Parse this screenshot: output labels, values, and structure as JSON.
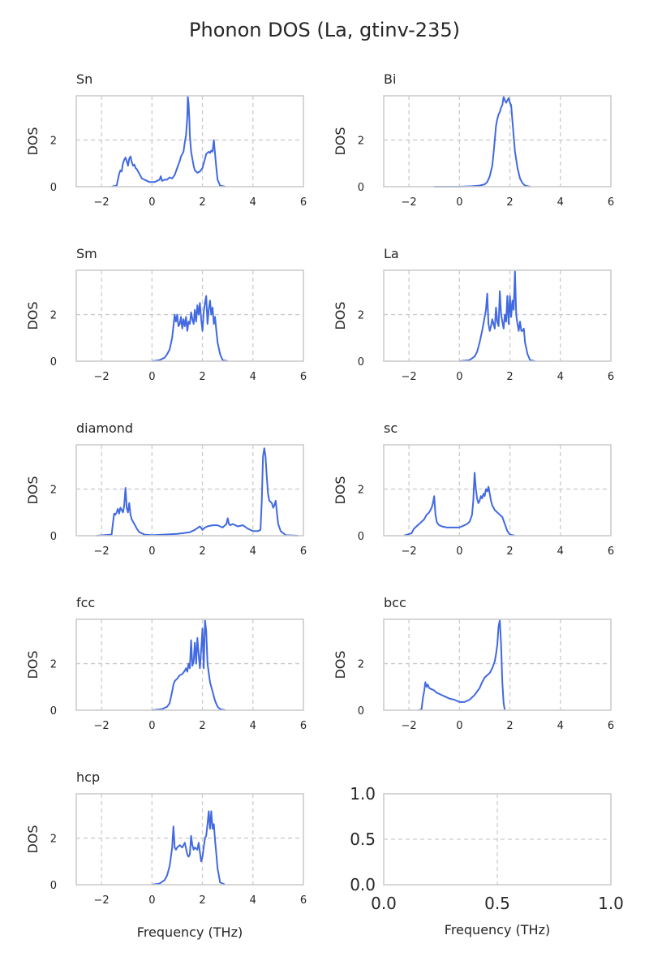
{
  "figure": {
    "title": "Phonon DOS (La, gtinv-235)",
    "colors": {
      "line": "#4169e1",
      "grid": "#cccccc",
      "spine": "#cccccc",
      "text": "#262626",
      "background": "#ffffff"
    }
  },
  "chart_data": [
    {
      "type": "line",
      "title": "Sn",
      "xlabel": "",
      "ylabel": "DOS",
      "xlim": [
        -3,
        6
      ],
      "ylim": [
        0,
        3.9
      ],
      "grid": true,
      "xticks": [
        "−2",
        "0",
        "2",
        "4",
        "6"
      ],
      "yticks": [
        "0",
        "2"
      ],
      "x": [
        -1.6,
        -1.4,
        -1.3,
        -1.25,
        -1.2,
        -1.15,
        -1.1,
        -1.05,
        -1.0,
        -0.95,
        -0.9,
        -0.85,
        -0.8,
        -0.75,
        -0.7,
        -0.65,
        -0.6,
        -0.5,
        -0.4,
        -0.3,
        -0.2,
        -0.1,
        0.0,
        0.1,
        0.2,
        0.3,
        0.35,
        0.4,
        0.5,
        0.6,
        0.7,
        0.8,
        0.9,
        1.0,
        1.1,
        1.15,
        1.2,
        1.25,
        1.3,
        1.35,
        1.4,
        1.42,
        1.45,
        1.48,
        1.5,
        1.55,
        1.6,
        1.65,
        1.7,
        1.8,
        1.9,
        2.0,
        2.1,
        2.15,
        2.2,
        2.25,
        2.3,
        2.35,
        2.4,
        2.45,
        2.5,
        2.55,
        2.6,
        2.7,
        2.9
      ],
      "y": [
        0.0,
        0.05,
        0.55,
        0.7,
        0.65,
        1.0,
        1.15,
        1.25,
        1.1,
        0.9,
        1.2,
        1.3,
        1.05,
        0.9,
        0.95,
        0.8,
        0.75,
        0.55,
        0.35,
        0.3,
        0.25,
        0.2,
        0.2,
        0.2,
        0.25,
        0.3,
        0.45,
        0.25,
        0.3,
        0.3,
        0.4,
        0.35,
        0.5,
        0.8,
        1.1,
        1.3,
        1.4,
        1.5,
        1.9,
        2.2,
        3.0,
        3.85,
        3.6,
        2.9,
        2.2,
        1.5,
        1.2,
        0.9,
        0.7,
        0.6,
        0.65,
        0.8,
        1.2,
        1.4,
        1.45,
        1.5,
        1.45,
        1.55,
        1.5,
        2.0,
        1.4,
        0.8,
        0.3,
        0.05,
        0.0
      ]
    },
    {
      "type": "line",
      "title": "Bi",
      "xlabel": "",
      "ylabel": "DOS",
      "xlim": [
        -3,
        6
      ],
      "ylim": [
        0,
        3.9
      ],
      "grid": true,
      "xticks": [
        "−2",
        "0",
        "2",
        "4",
        "6"
      ],
      "yticks": [
        "0",
        "2"
      ],
      "x": [
        -1.0,
        0.0,
        0.5,
        0.8,
        1.0,
        1.1,
        1.2,
        1.3,
        1.35,
        1.4,
        1.45,
        1.5,
        1.55,
        1.6,
        1.65,
        1.7,
        1.75,
        1.8,
        1.85,
        1.9,
        1.95,
        2.0,
        2.05,
        2.1,
        2.2,
        2.3,
        2.4,
        2.5,
        2.6,
        2.8
      ],
      "y": [
        0.0,
        0.0,
        0.02,
        0.05,
        0.1,
        0.2,
        0.45,
        0.9,
        1.4,
        2.0,
        2.6,
        2.9,
        3.1,
        3.2,
        3.4,
        3.5,
        3.85,
        3.7,
        3.6,
        3.7,
        3.8,
        3.6,
        3.5,
        2.8,
        1.5,
        0.8,
        0.35,
        0.15,
        0.05,
        0.0
      ]
    },
    {
      "type": "line",
      "title": "Sm",
      "xlabel": "",
      "ylabel": "DOS",
      "xlim": [
        -3,
        6
      ],
      "ylim": [
        0,
        3.9
      ],
      "grid": true,
      "xticks": [
        "−2",
        "0",
        "2",
        "4",
        "6"
      ],
      "yticks": [
        "0",
        "2"
      ],
      "x": [
        0.0,
        0.3,
        0.5,
        0.6,
        0.7,
        0.8,
        0.85,
        0.9,
        0.95,
        1.0,
        1.05,
        1.1,
        1.15,
        1.2,
        1.25,
        1.3,
        1.35,
        1.4,
        1.45,
        1.5,
        1.55,
        1.6,
        1.65,
        1.7,
        1.75,
        1.8,
        1.85,
        1.9,
        1.95,
        2.0,
        2.05,
        2.1,
        2.15,
        2.2,
        2.25,
        2.3,
        2.35,
        2.4,
        2.45,
        2.5,
        2.55,
        2.6,
        2.7,
        2.8,
        3.0
      ],
      "y": [
        0.0,
        0.05,
        0.15,
        0.3,
        0.5,
        1.0,
        1.5,
        2.0,
        1.7,
        2.0,
        1.5,
        1.6,
        1.9,
        1.4,
        1.8,
        1.5,
        1.9,
        1.3,
        1.7,
        1.6,
        2.1,
        1.8,
        1.6,
        2.2,
        1.7,
        2.4,
        2.0,
        2.5,
        1.8,
        1.3,
        2.1,
        2.5,
        2.8,
        1.6,
        2.2,
        2.6,
        2.0,
        2.3,
        1.6,
        1.9,
        1.3,
        0.8,
        0.3,
        0.05,
        0.0
      ]
    },
    {
      "type": "line",
      "title": "La",
      "xlabel": "",
      "ylabel": "DOS",
      "xlim": [
        -3,
        6
      ],
      "ylim": [
        0,
        3.9
      ],
      "grid": true,
      "xticks": [
        "−2",
        "0",
        "2",
        "4",
        "6"
      ],
      "yticks": [
        "0",
        "2"
      ],
      "x": [
        0.0,
        0.4,
        0.6,
        0.7,
        0.8,
        0.9,
        0.95,
        1.0,
        1.05,
        1.1,
        1.15,
        1.2,
        1.25,
        1.3,
        1.35,
        1.4,
        1.45,
        1.5,
        1.55,
        1.6,
        1.65,
        1.7,
        1.75,
        1.8,
        1.85,
        1.9,
        1.95,
        2.0,
        2.05,
        2.1,
        2.15,
        2.2,
        2.25,
        2.3,
        2.35,
        2.4,
        2.45,
        2.5,
        2.55,
        2.6,
        2.7,
        2.8,
        3.0
      ],
      "y": [
        0.0,
        0.05,
        0.2,
        0.4,
        0.8,
        1.3,
        1.6,
        1.9,
        2.2,
        2.9,
        1.6,
        1.3,
        1.5,
        1.8,
        1.6,
        1.4,
        2.3,
        1.7,
        1.5,
        3.0,
        2.0,
        1.7,
        1.4,
        2.0,
        1.7,
        2.8,
        1.6,
        2.8,
        1.9,
        2.6,
        2.2,
        3.85,
        2.0,
        1.6,
        1.3,
        1.7,
        1.3,
        1.3,
        1.4,
        0.8,
        0.3,
        0.05,
        0.0
      ]
    },
    {
      "type": "line",
      "title": "diamond",
      "xlabel": "",
      "ylabel": "DOS",
      "xlim": [
        -3,
        6
      ],
      "ylim": [
        0,
        3.9
      ],
      "grid": true,
      "xticks": [
        "−2",
        "0",
        "2",
        "4",
        "6"
      ],
      "yticks": [
        "0",
        "2"
      ],
      "x": [
        -2.2,
        -1.6,
        -1.55,
        -1.5,
        -1.45,
        -1.4,
        -1.35,
        -1.3,
        -1.25,
        -1.2,
        -1.15,
        -1.1,
        -1.05,
        -1.0,
        -0.95,
        -0.9,
        -0.85,
        -0.8,
        -0.7,
        -0.6,
        -0.5,
        -0.3,
        0.0,
        0.5,
        1.0,
        1.5,
        1.7,
        1.9,
        2.0,
        2.1,
        2.2,
        2.4,
        2.6,
        2.8,
        2.95,
        3.0,
        3.05,
        3.1,
        3.2,
        3.3,
        3.4,
        3.6,
        3.8,
        4.0,
        4.2,
        4.3,
        4.35,
        4.4,
        4.45,
        4.5,
        4.55,
        4.6,
        4.65,
        4.7,
        4.75,
        4.8,
        4.85,
        4.9,
        5.0,
        5.1,
        5.3,
        5.8
      ],
      "y": [
        0.0,
        0.05,
        0.5,
        0.95,
        0.9,
        1.0,
        1.15,
        0.95,
        1.2,
        1.1,
        1.0,
        1.3,
        2.05,
        1.2,
        1.0,
        1.4,
        0.9,
        0.7,
        0.5,
        0.3,
        0.15,
        0.05,
        0.02,
        0.05,
        0.08,
        0.15,
        0.25,
        0.4,
        0.25,
        0.35,
        0.4,
        0.45,
        0.45,
        0.35,
        0.5,
        0.75,
        0.5,
        0.45,
        0.5,
        0.45,
        0.4,
        0.45,
        0.3,
        0.2,
        0.2,
        0.25,
        1.5,
        3.4,
        3.75,
        3.4,
        2.5,
        1.8,
        1.5,
        1.45,
        1.4,
        1.2,
        1.3,
        1.5,
        0.5,
        0.2,
        0.02,
        0.0
      ]
    },
    {
      "type": "line",
      "title": "sc",
      "xlabel": "",
      "ylabel": "DOS",
      "xlim": [
        -3,
        6
      ],
      "ylim": [
        0,
        3.9
      ],
      "grid": true,
      "xticks": [
        "−2",
        "0",
        "2",
        "4",
        "6"
      ],
      "yticks": [
        "0",
        "2"
      ],
      "x": [
        -2.2,
        -1.9,
        -1.8,
        -1.7,
        -1.6,
        -1.5,
        -1.4,
        -1.3,
        -1.2,
        -1.1,
        -1.05,
        -1.0,
        -0.95,
        -0.9,
        -0.85,
        -0.8,
        -0.7,
        -0.5,
        -0.3,
        -0.1,
        0.0,
        0.1,
        0.2,
        0.3,
        0.4,
        0.5,
        0.55,
        0.6,
        0.65,
        0.7,
        0.75,
        0.8,
        0.85,
        0.9,
        0.95,
        1.0,
        1.05,
        1.1,
        1.15,
        1.2,
        1.25,
        1.3,
        1.35,
        1.4,
        1.5,
        1.6,
        1.7,
        1.8,
        1.9,
        2.0,
        2.2
      ],
      "y": [
        0.0,
        0.1,
        0.3,
        0.4,
        0.5,
        0.6,
        0.7,
        0.9,
        1.0,
        1.2,
        1.4,
        1.7,
        0.9,
        0.6,
        0.5,
        0.45,
        0.4,
        0.35,
        0.35,
        0.35,
        0.35,
        0.4,
        0.45,
        0.5,
        0.6,
        0.9,
        1.5,
        2.7,
        2.0,
        1.6,
        1.4,
        1.5,
        1.7,
        1.6,
        1.8,
        1.7,
        2.0,
        1.9,
        2.1,
        1.8,
        1.5,
        1.3,
        1.2,
        1.1,
        1.0,
        0.9,
        0.8,
        0.5,
        0.2,
        0.05,
        0.0
      ]
    },
    {
      "type": "line",
      "title": "fcc",
      "xlabel": "",
      "ylabel": "DOS",
      "xlim": [
        -3,
        6
      ],
      "ylim": [
        0,
        3.9
      ],
      "grid": true,
      "xticks": [
        "−2",
        "0",
        "2",
        "4",
        "6"
      ],
      "yticks": [
        "0",
        "2"
      ],
      "x": [
        0.0,
        0.4,
        0.6,
        0.7,
        0.8,
        0.85,
        0.9,
        1.0,
        1.1,
        1.2,
        1.3,
        1.35,
        1.4,
        1.45,
        1.5,
        1.55,
        1.6,
        1.65,
        1.7,
        1.75,
        1.8,
        1.85,
        1.9,
        1.95,
        2.0,
        2.05,
        2.1,
        2.15,
        2.2,
        2.3,
        2.4,
        2.5,
        2.6,
        2.7,
        2.9
      ],
      "y": [
        0.0,
        0.05,
        0.15,
        0.3,
        0.8,
        1.1,
        1.25,
        1.35,
        1.5,
        1.55,
        1.7,
        1.8,
        1.65,
        2.0,
        1.8,
        3.0,
        1.9,
        2.1,
        2.9,
        2.0,
        3.1,
        2.4,
        1.8,
        2.6,
        3.5,
        1.8,
        3.85,
        3.4,
        2.0,
        1.2,
        0.8,
        0.4,
        0.15,
        0.05,
        0.0
      ]
    },
    {
      "type": "line",
      "title": "bcc",
      "xlabel": "",
      "ylabel": "DOS",
      "xlim": [
        -3,
        6
      ],
      "ylim": [
        0,
        3.9
      ],
      "grid": true,
      "xticks": [
        "−2",
        "0",
        "2",
        "4",
        "6"
      ],
      "yticks": [
        "0",
        "2"
      ],
      "x": [
        -1.6,
        -1.5,
        -1.45,
        -1.4,
        -1.35,
        -1.3,
        -1.25,
        -1.2,
        -1.1,
        -1.0,
        -0.9,
        -0.8,
        -0.6,
        -0.4,
        -0.2,
        0.0,
        0.1,
        0.2,
        0.3,
        0.4,
        0.5,
        0.6,
        0.7,
        0.8,
        0.9,
        1.0,
        1.1,
        1.2,
        1.3,
        1.4,
        1.45,
        1.5,
        1.55,
        1.6,
        1.65,
        1.7,
        1.75,
        1.8
      ],
      "y": [
        0.0,
        0.05,
        0.5,
        0.8,
        1.2,
        1.0,
        1.1,
        0.95,
        0.9,
        0.85,
        0.75,
        0.7,
        0.6,
        0.5,
        0.45,
        0.35,
        0.35,
        0.35,
        0.4,
        0.45,
        0.55,
        0.65,
        0.8,
        0.95,
        1.2,
        1.4,
        1.5,
        1.6,
        1.8,
        2.1,
        2.4,
        2.8,
        3.6,
        3.85,
        2.8,
        1.2,
        0.3,
        0.0
      ]
    },
    {
      "type": "line",
      "title": "hcp",
      "xlabel": "Frequency (THz)",
      "ylabel": "DOS",
      "xlim": [
        -3,
        6
      ],
      "ylim": [
        0,
        3.9
      ],
      "grid": true,
      "xticks": [
        "−2",
        "0",
        "2",
        "4",
        "6"
      ],
      "yticks": [
        "0",
        "2"
      ],
      "x": [
        0.0,
        0.3,
        0.5,
        0.6,
        0.7,
        0.75,
        0.8,
        0.85,
        0.9,
        0.95,
        1.0,
        1.1,
        1.2,
        1.3,
        1.4,
        1.45,
        1.5,
        1.55,
        1.6,
        1.65,
        1.7,
        1.8,
        1.85,
        1.9,
        1.95,
        2.0,
        2.05,
        2.1,
        2.15,
        2.2,
        2.25,
        2.3,
        2.35,
        2.4,
        2.45,
        2.5,
        2.55,
        2.6,
        2.7,
        2.9
      ],
      "y": [
        0.0,
        0.05,
        0.2,
        0.4,
        0.8,
        1.2,
        1.6,
        2.5,
        1.6,
        1.5,
        1.6,
        1.7,
        1.6,
        1.8,
        1.3,
        1.2,
        1.3,
        2.1,
        1.7,
        1.5,
        1.6,
        1.5,
        1.8,
        1.4,
        1.0,
        1.2,
        1.6,
        2.0,
        2.1,
        2.6,
        3.15,
        2.4,
        3.15,
        2.4,
        2.6,
        1.9,
        1.3,
        0.7,
        0.1,
        0.0
      ]
    },
    {
      "type": "line",
      "title": "",
      "xlabel": "Frequency (THz)",
      "ylabel": "",
      "xlim": [
        0,
        1
      ],
      "ylim": [
        0,
        1
      ],
      "grid": true,
      "xticks": [
        "0.0",
        "0.5",
        "1.0"
      ],
      "yticks": [
        "0.0",
        "0.5",
        "1.0"
      ],
      "x": [],
      "y": []
    }
  ]
}
